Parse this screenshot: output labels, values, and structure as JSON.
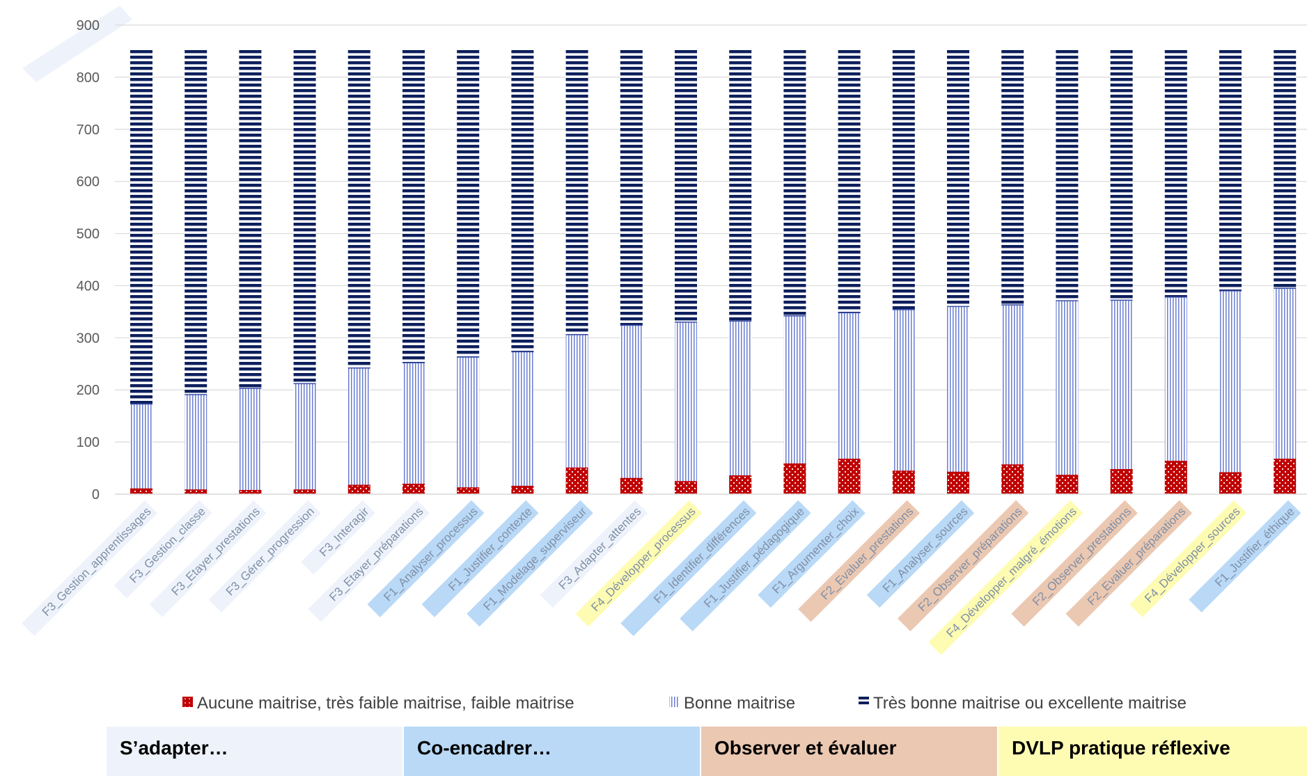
{
  "chart_data": {
    "type": "bar",
    "stacked": true,
    "ylim": [
      0,
      900
    ],
    "yticks": [
      "0",
      "100",
      "200",
      "300",
      "400",
      "500",
      "600",
      "700",
      "800",
      "900"
    ],
    "grid": true,
    "legend_position": "bottom",
    "categories": [
      "F3_Gestion_apprentissages",
      "F3_Gestion_classe",
      "F3_Etayer_prestations",
      "F3_Gérer_progression",
      "F3_Interagir",
      "F3_Etayer_préparations",
      "F1_Analyser_processus",
      "F1_Justifier_contexte",
      "F1_Modelage_superviseur",
      "F3_Adapter_attentes",
      "F4_Développer_processus",
      "F1_Identifier_différences",
      "F1_Justifier_pédagogique",
      "F1_Argumenter_choix",
      "F2_Evaluer_prestations",
      "F1_Analyser_sources",
      "F2_Observer_préparations",
      "F4_Développer_malgré_émotions",
      "F2_Observer_prestations",
      "F2_Evaluer_préparations",
      "F4_Développer_sources",
      "F1_Justifier_éthique"
    ],
    "category_groups": [
      "F3",
      "F3",
      "F3",
      "F3",
      "F3",
      "F3",
      "F1",
      "F1",
      "F1",
      "F3",
      "F4",
      "F1",
      "F1",
      "F1",
      "F2",
      "F1",
      "F2",
      "F4",
      "F2",
      "F2",
      "F4",
      "F1"
    ],
    "series": [
      {
        "name": "Aucune maitrise, très faible maitrise, faible maitrise",
        "color": "#c00000",
        "pattern": "dots",
        "values": [
          10,
          8,
          7,
          8,
          17,
          19,
          12,
          15,
          50,
          30,
          24,
          35,
          58,
          67,
          44,
          42,
          56,
          36,
          47,
          63,
          41,
          67
        ]
      },
      {
        "name": "Bonne maitrise",
        "color": "#5b6fc7",
        "pattern": "vertical-lines",
        "values": [
          163,
          183,
          196,
          204,
          225,
          233,
          251,
          258,
          256,
          294,
          306,
          297,
          284,
          281,
          310,
          318,
          307,
          335,
          325,
          315,
          349,
          328
        ]
      },
      {
        "name": "Très bonne maitrise ou excellente maitrise",
        "color": "#0d1f5c",
        "pattern": "horizontal-lines",
        "values": [
          682,
          664,
          652,
          643,
          613,
          603,
          592,
          582,
          549,
          531,
          525,
          523,
          513,
          507,
          501,
          495,
          492,
          484,
          483,
          477,
          465,
          460
        ]
      }
    ]
  },
  "groups": [
    {
      "key": "F3",
      "label": "S’adapter…",
      "color": "#eef3fb"
    },
    {
      "key": "F1",
      "label": "Co-encadrer…",
      "color": "#b9d9f7"
    },
    {
      "key": "F2",
      "label": "Observer et évaluer",
      "color": "#ebc8b2"
    },
    {
      "key": "F4",
      "label": "DVLP pratique réflexive",
      "color": "#fefcb2"
    }
  ]
}
